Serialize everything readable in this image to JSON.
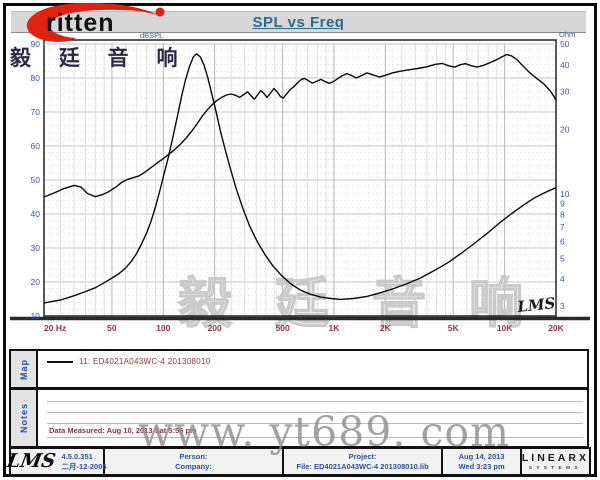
{
  "branding": {
    "logo_text": "ritten",
    "logo_cn": "毅 廷 音 响"
  },
  "header": {
    "title": "SPL vs Freq"
  },
  "chart_data": {
    "type": "line",
    "title": "SPL vs Freq",
    "grid": true,
    "x_axis": {
      "label": "Hz",
      "scale": "log",
      "min": 20,
      "max": 20000,
      "tick_labels": [
        "20 Hz",
        "50",
        "100",
        "200",
        "500",
        "1K",
        "2K",
        "5K",
        "10K",
        "20K"
      ],
      "tick_values": [
        20,
        50,
        100,
        200,
        500,
        1000,
        2000,
        5000,
        10000,
        20000
      ]
    },
    "y_left": {
      "label": "dBSPL",
      "scale": "linear",
      "min": 10,
      "max": 90,
      "ticks": [
        90,
        80,
        70,
        60,
        50,
        40,
        30,
        20,
        10
      ]
    },
    "y_right": {
      "label": "Ohm",
      "scale": "log",
      "min": 3,
      "max": 50,
      "ticks": [
        50,
        40,
        30,
        20,
        10,
        9,
        8,
        7,
        6,
        5,
        4,
        3
      ]
    },
    "series": [
      {
        "name": "SPL 11: ED4021A043WC-4  201308010",
        "axis": "left",
        "unit": "dBSPL",
        "color": "#0a0a0a",
        "points": [
          [
            20,
            45
          ],
          [
            23,
            46.2
          ],
          [
            26,
            47.4
          ],
          [
            30,
            48.4
          ],
          [
            33,
            47.9
          ],
          [
            36,
            46
          ],
          [
            40,
            45.1
          ],
          [
            44,
            45.7
          ],
          [
            48,
            46.6
          ],
          [
            53,
            48
          ],
          [
            57,
            49.3
          ],
          [
            62,
            50.2
          ],
          [
            67,
            50.7
          ],
          [
            72,
            51.2
          ],
          [
            78,
            52.3
          ],
          [
            85,
            53.7
          ],
          [
            92,
            55
          ],
          [
            100,
            56.3
          ],
          [
            108,
            57.6
          ],
          [
            117,
            59
          ],
          [
            127,
            60.7
          ],
          [
            137,
            62.5
          ],
          [
            148,
            64.6
          ],
          [
            158,
            66.6
          ],
          [
            170,
            68.9
          ],
          [
            180,
            70.5
          ],
          [
            192,
            72
          ],
          [
            205,
            73.3
          ],
          [
            220,
            74.3
          ],
          [
            235,
            75
          ],
          [
            250,
            75.3
          ],
          [
            265,
            74.9
          ],
          [
            280,
            74.3
          ],
          [
            295,
            75.1
          ],
          [
            312,
            75.9
          ],
          [
            328,
            74.7
          ],
          [
            342,
            73.8
          ],
          [
            357,
            75
          ],
          [
            372,
            76.3
          ],
          [
            388,
            75.5
          ],
          [
            405,
            74.3
          ],
          [
            425,
            75.6
          ],
          [
            445,
            76.9
          ],
          [
            465,
            75.9
          ],
          [
            485,
            74.6
          ],
          [
            505,
            74.1
          ],
          [
            530,
            75.4
          ],
          [
            555,
            76.6
          ],
          [
            580,
            77.4
          ],
          [
            610,
            78.5
          ],
          [
            640,
            79.5
          ],
          [
            670,
            79.9
          ],
          [
            705,
            79.3
          ],
          [
            745,
            78.5
          ],
          [
            790,
            79
          ],
          [
            840,
            79.6
          ],
          [
            890,
            78.9
          ],
          [
            940,
            78.4
          ],
          [
            990,
            78.9
          ],
          [
            1050,
            79.8
          ],
          [
            1120,
            80.7
          ],
          [
            1190,
            81.3
          ],
          [
            1260,
            80.8
          ],
          [
            1350,
            80
          ],
          [
            1450,
            80.7
          ],
          [
            1560,
            81.5
          ],
          [
            1700,
            80.9
          ],
          [
            1850,
            80.3
          ],
          [
            2000,
            80.8
          ],
          [
            2200,
            81.5
          ],
          [
            2450,
            82
          ],
          [
            2750,
            82.4
          ],
          [
            3100,
            82.8
          ],
          [
            3500,
            83.3
          ],
          [
            3900,
            84
          ],
          [
            4300,
            84.3
          ],
          [
            4700,
            83.6
          ],
          [
            5100,
            83.2
          ],
          [
            5500,
            83.9
          ],
          [
            5900,
            84.2
          ],
          [
            6400,
            83.6
          ],
          [
            6900,
            83.2
          ],
          [
            7500,
            83.7
          ],
          [
            8200,
            84.5
          ],
          [
            9000,
            85.4
          ],
          [
            9700,
            86.3
          ],
          [
            10300,
            86.9
          ],
          [
            11000,
            86.5
          ],
          [
            11800,
            85.4
          ],
          [
            12800,
            83.6
          ],
          [
            14000,
            81.6
          ],
          [
            15500,
            79.8
          ],
          [
            17000,
            78.2
          ],
          [
            18500,
            76.2
          ],
          [
            19500,
            74.5
          ],
          [
            20000,
            73.4
          ]
        ]
      },
      {
        "name": "Impedance 11: ED4021A043WC-4  201308010",
        "axis": "right",
        "unit": "Ohm",
        "color": "#0a0a0a",
        "points": [
          [
            20,
            3.1
          ],
          [
            25,
            3.2
          ],
          [
            30,
            3.35
          ],
          [
            35,
            3.5
          ],
          [
            40,
            3.65
          ],
          [
            45,
            3.85
          ],
          [
            50,
            4.05
          ],
          [
            55,
            4.25
          ],
          [
            60,
            4.5
          ],
          [
            65,
            4.85
          ],
          [
            70,
            5.3
          ],
          [
            75,
            5.9
          ],
          [
            80,
            6.6
          ],
          [
            85,
            7.5
          ],
          [
            90,
            8.7
          ],
          [
            95,
            10.2
          ],
          [
            100,
            12
          ],
          [
            107,
            14.8
          ],
          [
            114,
            18.5
          ],
          [
            121,
            23
          ],
          [
            128,
            28.5
          ],
          [
            135,
            34
          ],
          [
            142,
            39
          ],
          [
            150,
            43.5
          ],
          [
            157,
            45
          ],
          [
            165,
            43.5
          ],
          [
            173,
            40
          ],
          [
            182,
            35
          ],
          [
            192,
            29.5
          ],
          [
            203,
            24.5
          ],
          [
            215,
            20
          ],
          [
            230,
            16.2
          ],
          [
            248,
            13
          ],
          [
            268,
            10.5
          ],
          [
            292,
            8.6
          ],
          [
            320,
            7.1
          ],
          [
            355,
            6
          ],
          [
            395,
            5.2
          ],
          [
            440,
            4.6
          ],
          [
            495,
            4.15
          ],
          [
            560,
            3.8
          ],
          [
            640,
            3.55
          ],
          [
            730,
            3.4
          ],
          [
            840,
            3.3
          ],
          [
            960,
            3.25
          ],
          [
            1100,
            3.22
          ],
          [
            1300,
            3.25
          ],
          [
            1550,
            3.32
          ],
          [
            1850,
            3.45
          ],
          [
            2200,
            3.6
          ],
          [
            2650,
            3.8
          ],
          [
            3200,
            4.05
          ],
          [
            3900,
            4.4
          ],
          [
            4700,
            4.8
          ],
          [
            5600,
            5.3
          ],
          [
            6700,
            5.9
          ],
          [
            8000,
            6.6
          ],
          [
            9500,
            7.4
          ],
          [
            11000,
            8.1
          ],
          [
            13000,
            8.9
          ],
          [
            15000,
            9.6
          ],
          [
            17000,
            10.1
          ],
          [
            19000,
            10.5
          ],
          [
            20000,
            10.7
          ]
        ]
      }
    ],
    "legend_position": "map-strip-below-chart",
    "plot_watermark_cn": "毅 廷 音 响",
    "plot_mark_lms": "LMS"
  },
  "map_section": {
    "label": "Map",
    "legend_label": "11: ED4021A043WC-4  201308010"
  },
  "notes_section": {
    "label": "Notes",
    "data_measured": "Data Measured: Aug 10, 2013  Sat 5:56 pm"
  },
  "footer": {
    "lms_logo": "LMS",
    "version": "4.5.0.351",
    "version_date": "二月-12-2005",
    "person_label": "Person:",
    "company_label": "Company:",
    "project_label": "Project:",
    "file_label": "File: ED4021A043WC-4  201308010.lib",
    "date": "Aug 14, 2013",
    "time": "Wed  3:23 pm",
    "linearx_line1": "LINEARX",
    "linearx_line2": "SYSTEMS"
  },
  "watermarks": {
    "site": "www. yt689. com"
  },
  "colors": {
    "title": "#2e6a8e",
    "header_bg": "#d7d7d7",
    "axis_db_ohm_labels": "#3a56b0",
    "freq_labels": "#a03040",
    "legend_text": "#993333",
    "footer_text": "#2a4faa",
    "curve": "#0a0a0a",
    "logo_swoosh": "#e02010",
    "watermark_gray": "#8f8f8f"
  }
}
